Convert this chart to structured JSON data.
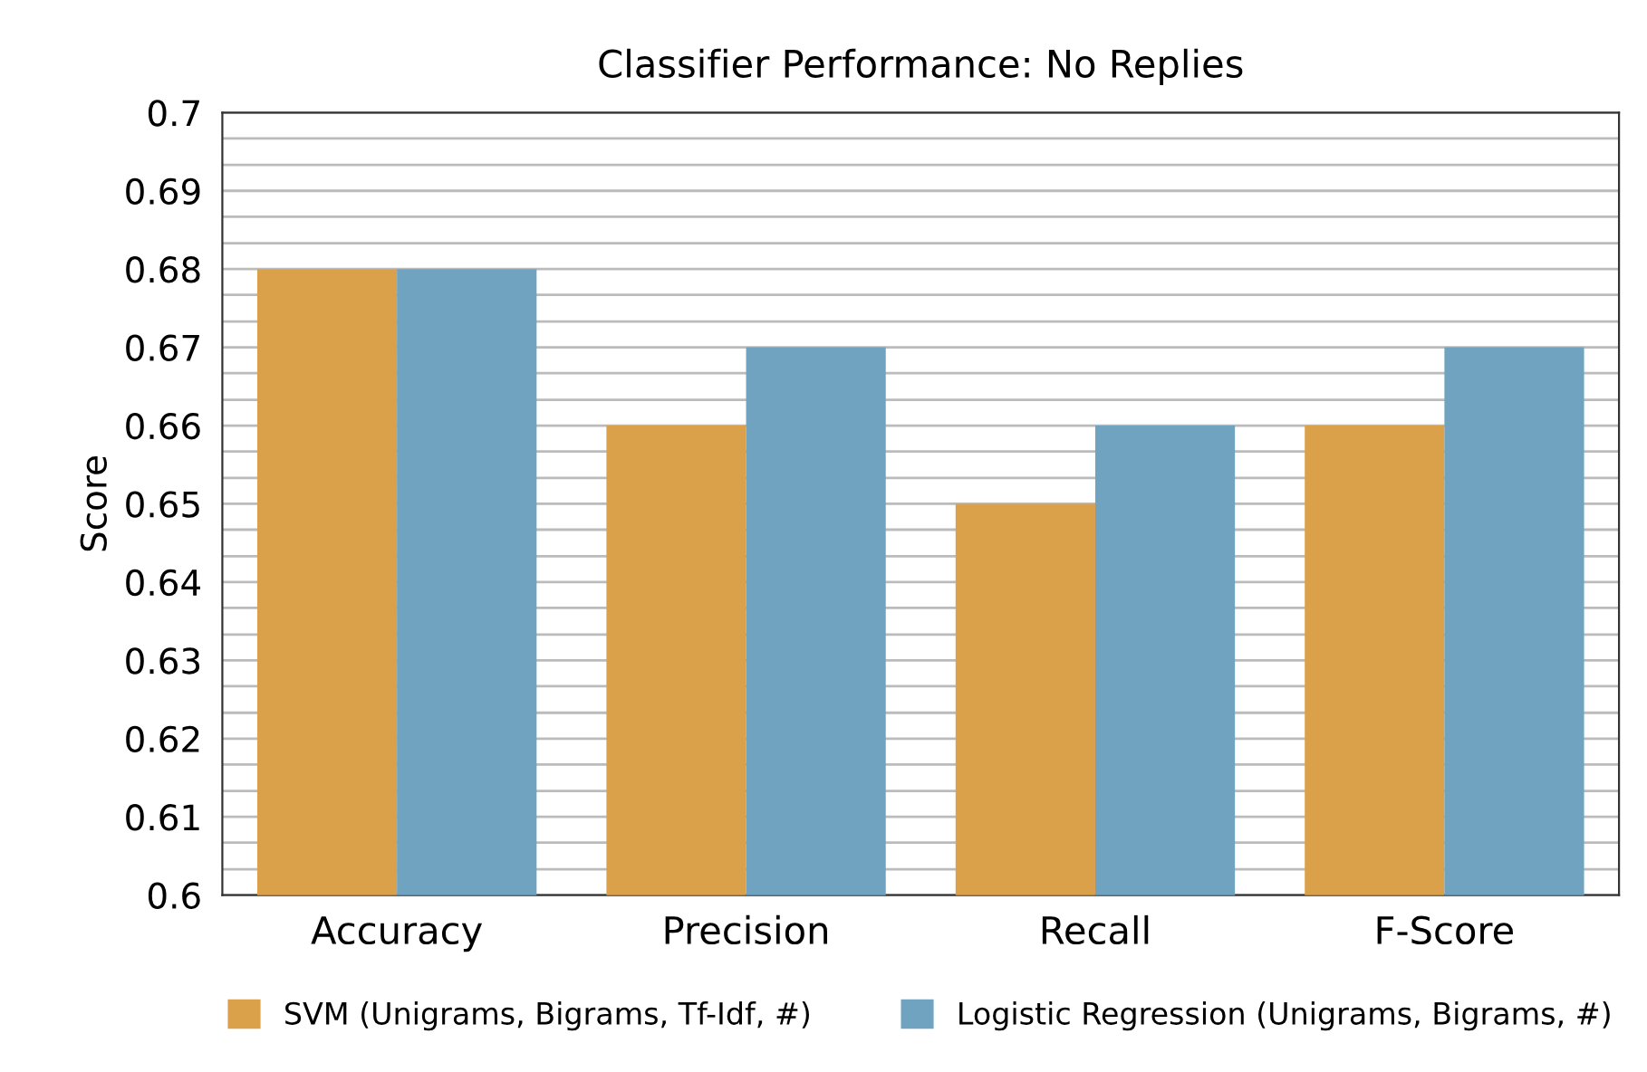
{
  "chart_data": {
    "type": "bar",
    "title": "Classifier Performance: No Replies",
    "ylabel": "Score",
    "categories": [
      "Accuracy",
      "Precision",
      "Recall",
      "F-Score"
    ],
    "series": [
      {
        "name": "SVM (Unigrams, Bigrams, Tf-Idf, #)",
        "color": "#dba04a",
        "values": [
          0.68,
          0.66,
          0.65,
          0.66
        ]
      },
      {
        "name": "Logistic Regression (Unigrams, Bigrams, #)",
        "color": "#6fa3c0",
        "values": [
          0.68,
          0.67,
          0.66,
          0.67
        ]
      }
    ],
    "ylim": [
      0.6,
      0.7
    ],
    "yticks": [
      0.6,
      {
        "value": 0.6033,
        "label": null
      },
      {
        "value": 0.6067,
        "label": null
      },
      0.61,
      {
        "value": 0.6133,
        "label": null
      },
      {
        "value": 0.6167,
        "label": null
      },
      0.62,
      {
        "value": 0.6233,
        "label": null
      },
      {
        "value": 0.6267,
        "label": null
      },
      0.63,
      {
        "value": 0.6333,
        "label": null
      },
      {
        "value": 0.6367,
        "label": null
      },
      0.64,
      {
        "value": 0.6433,
        "label": null
      },
      {
        "value": 0.6467,
        "label": null
      },
      0.65,
      {
        "value": 0.6533,
        "label": null
      },
      {
        "value": 0.6567,
        "label": null
      },
      0.66,
      {
        "value": 0.6633,
        "label": null
      },
      {
        "value": 0.6667,
        "label": null
      },
      0.67,
      {
        "value": 0.6733,
        "label": null
      },
      {
        "value": 0.6767,
        "label": null
      },
      0.68,
      {
        "value": 0.6833,
        "label": null
      },
      {
        "value": 0.6867,
        "label": null
      },
      0.69,
      {
        "value": 0.6933,
        "label": null
      },
      {
        "value": 0.6967,
        "label": null
      },
      0.7
    ],
    "grid": "y",
    "legend": "bottom"
  }
}
